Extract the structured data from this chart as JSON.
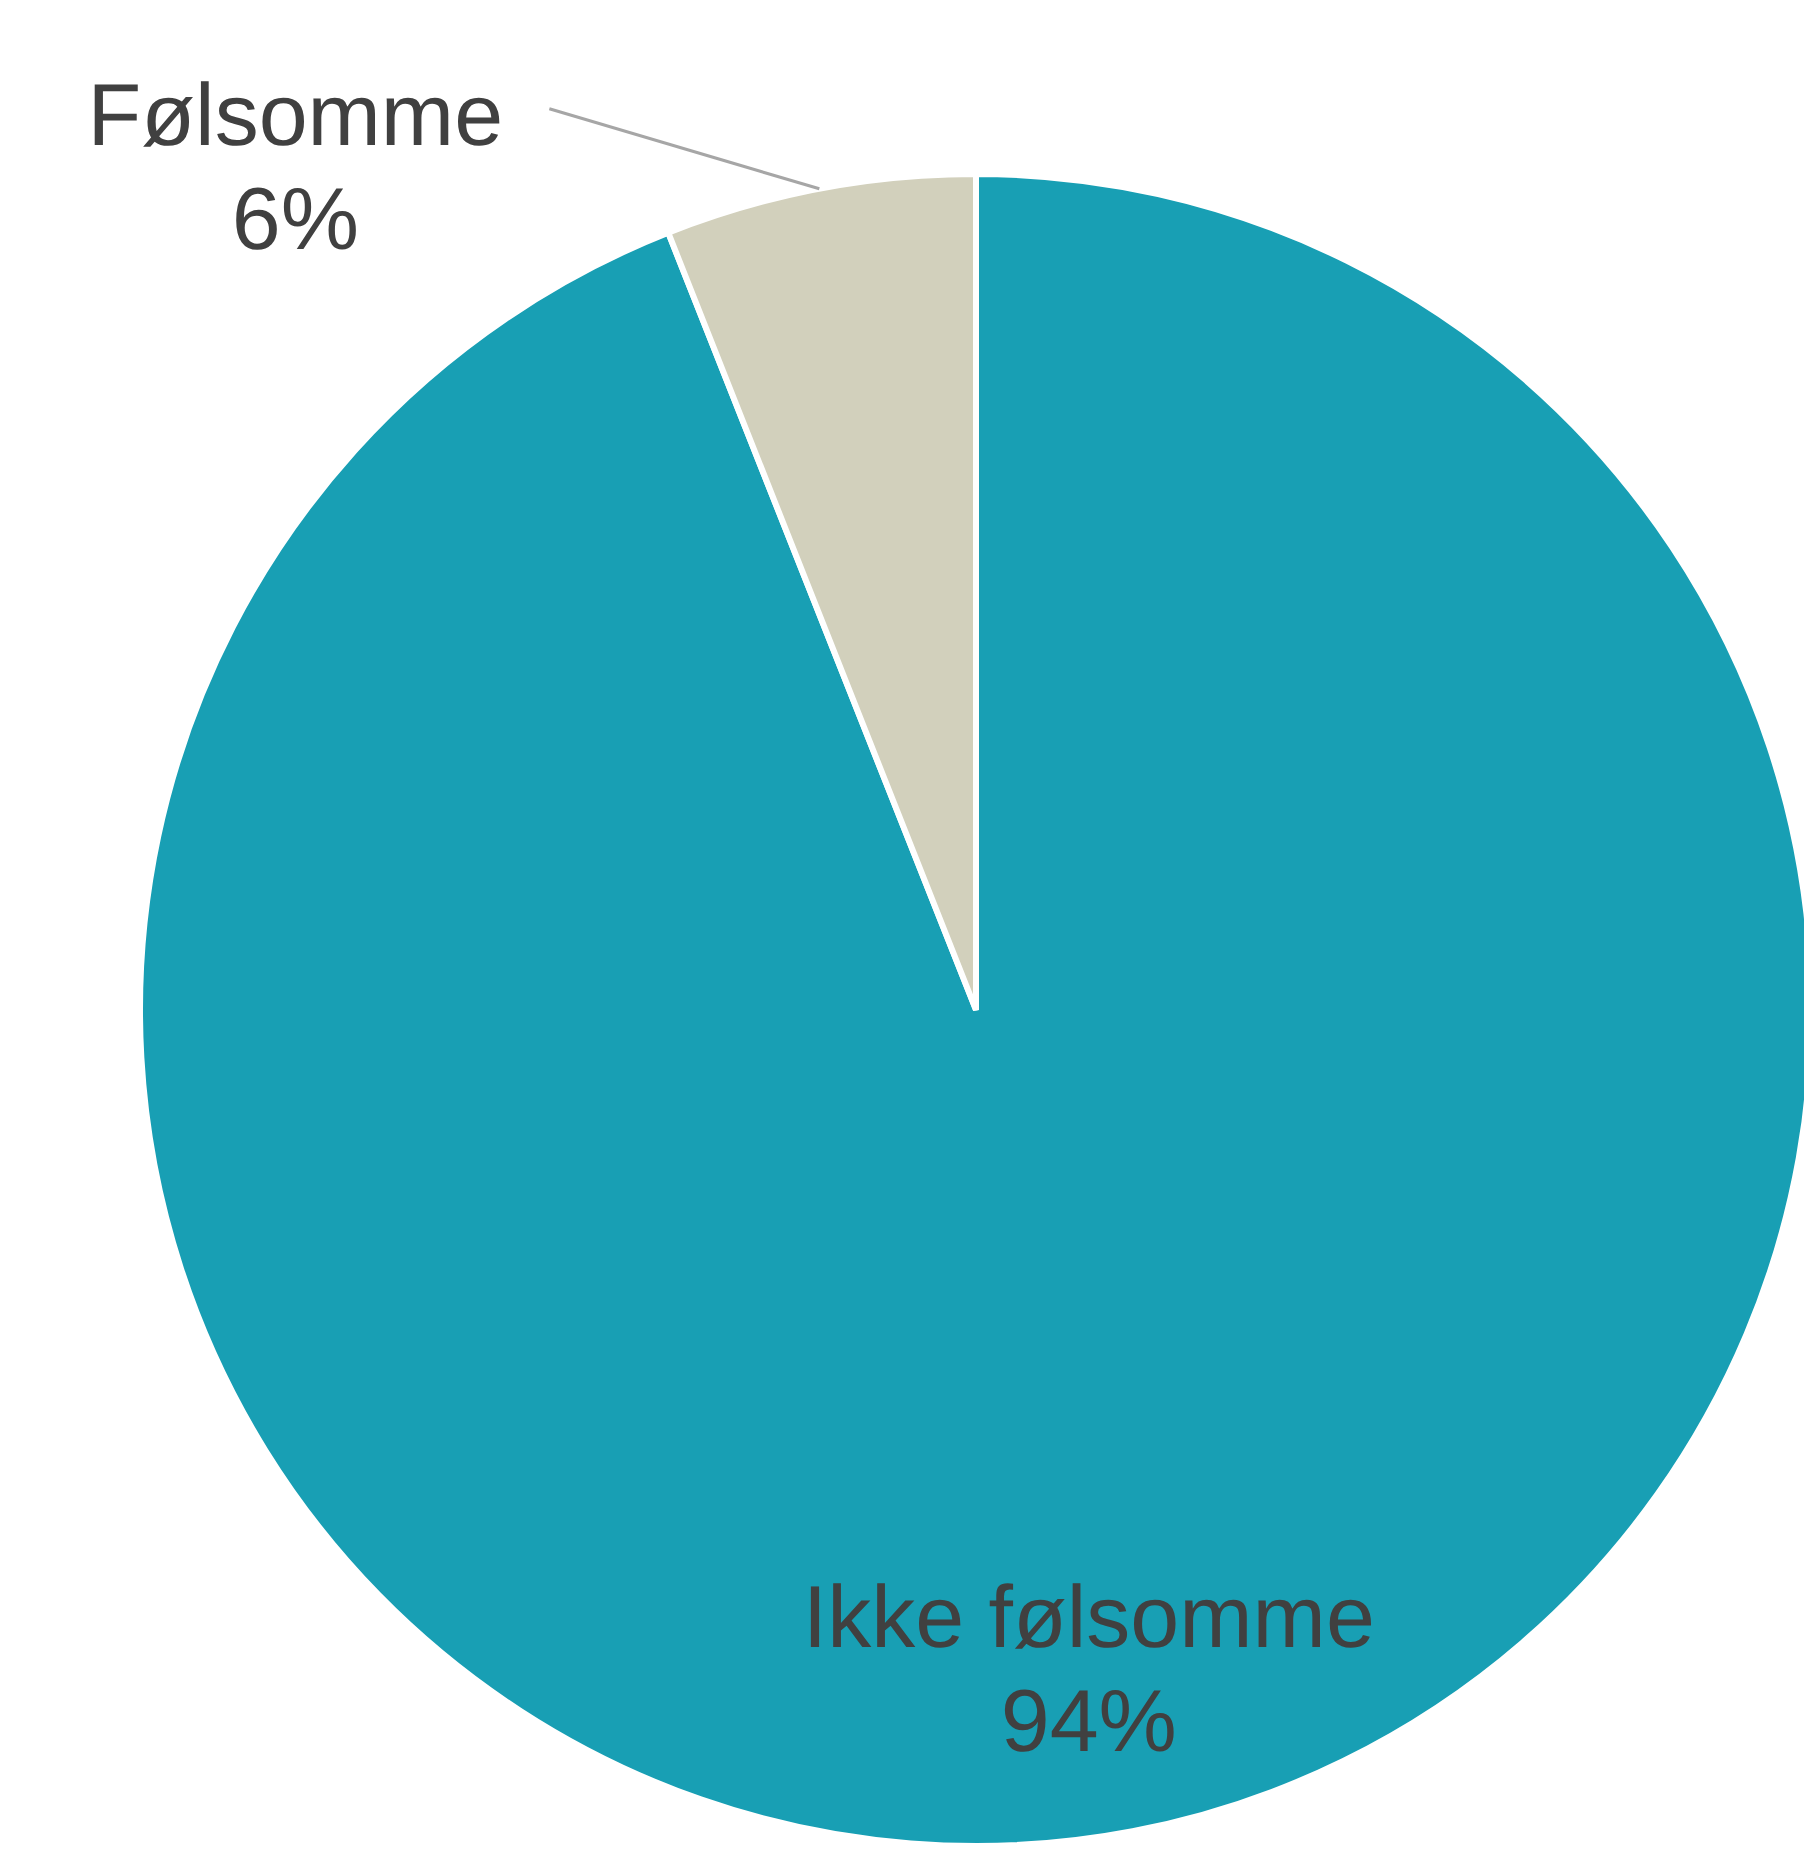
{
  "chart_data": {
    "type": "pie",
    "categories": [
      "Ikke følsomme",
      "Følsomme"
    ],
    "values": [
      94,
      6
    ],
    "colors": [
      "#189fb4",
      "#d2d0bc"
    ],
    "value_labels": [
      "94%",
      "6%"
    ]
  }
}
